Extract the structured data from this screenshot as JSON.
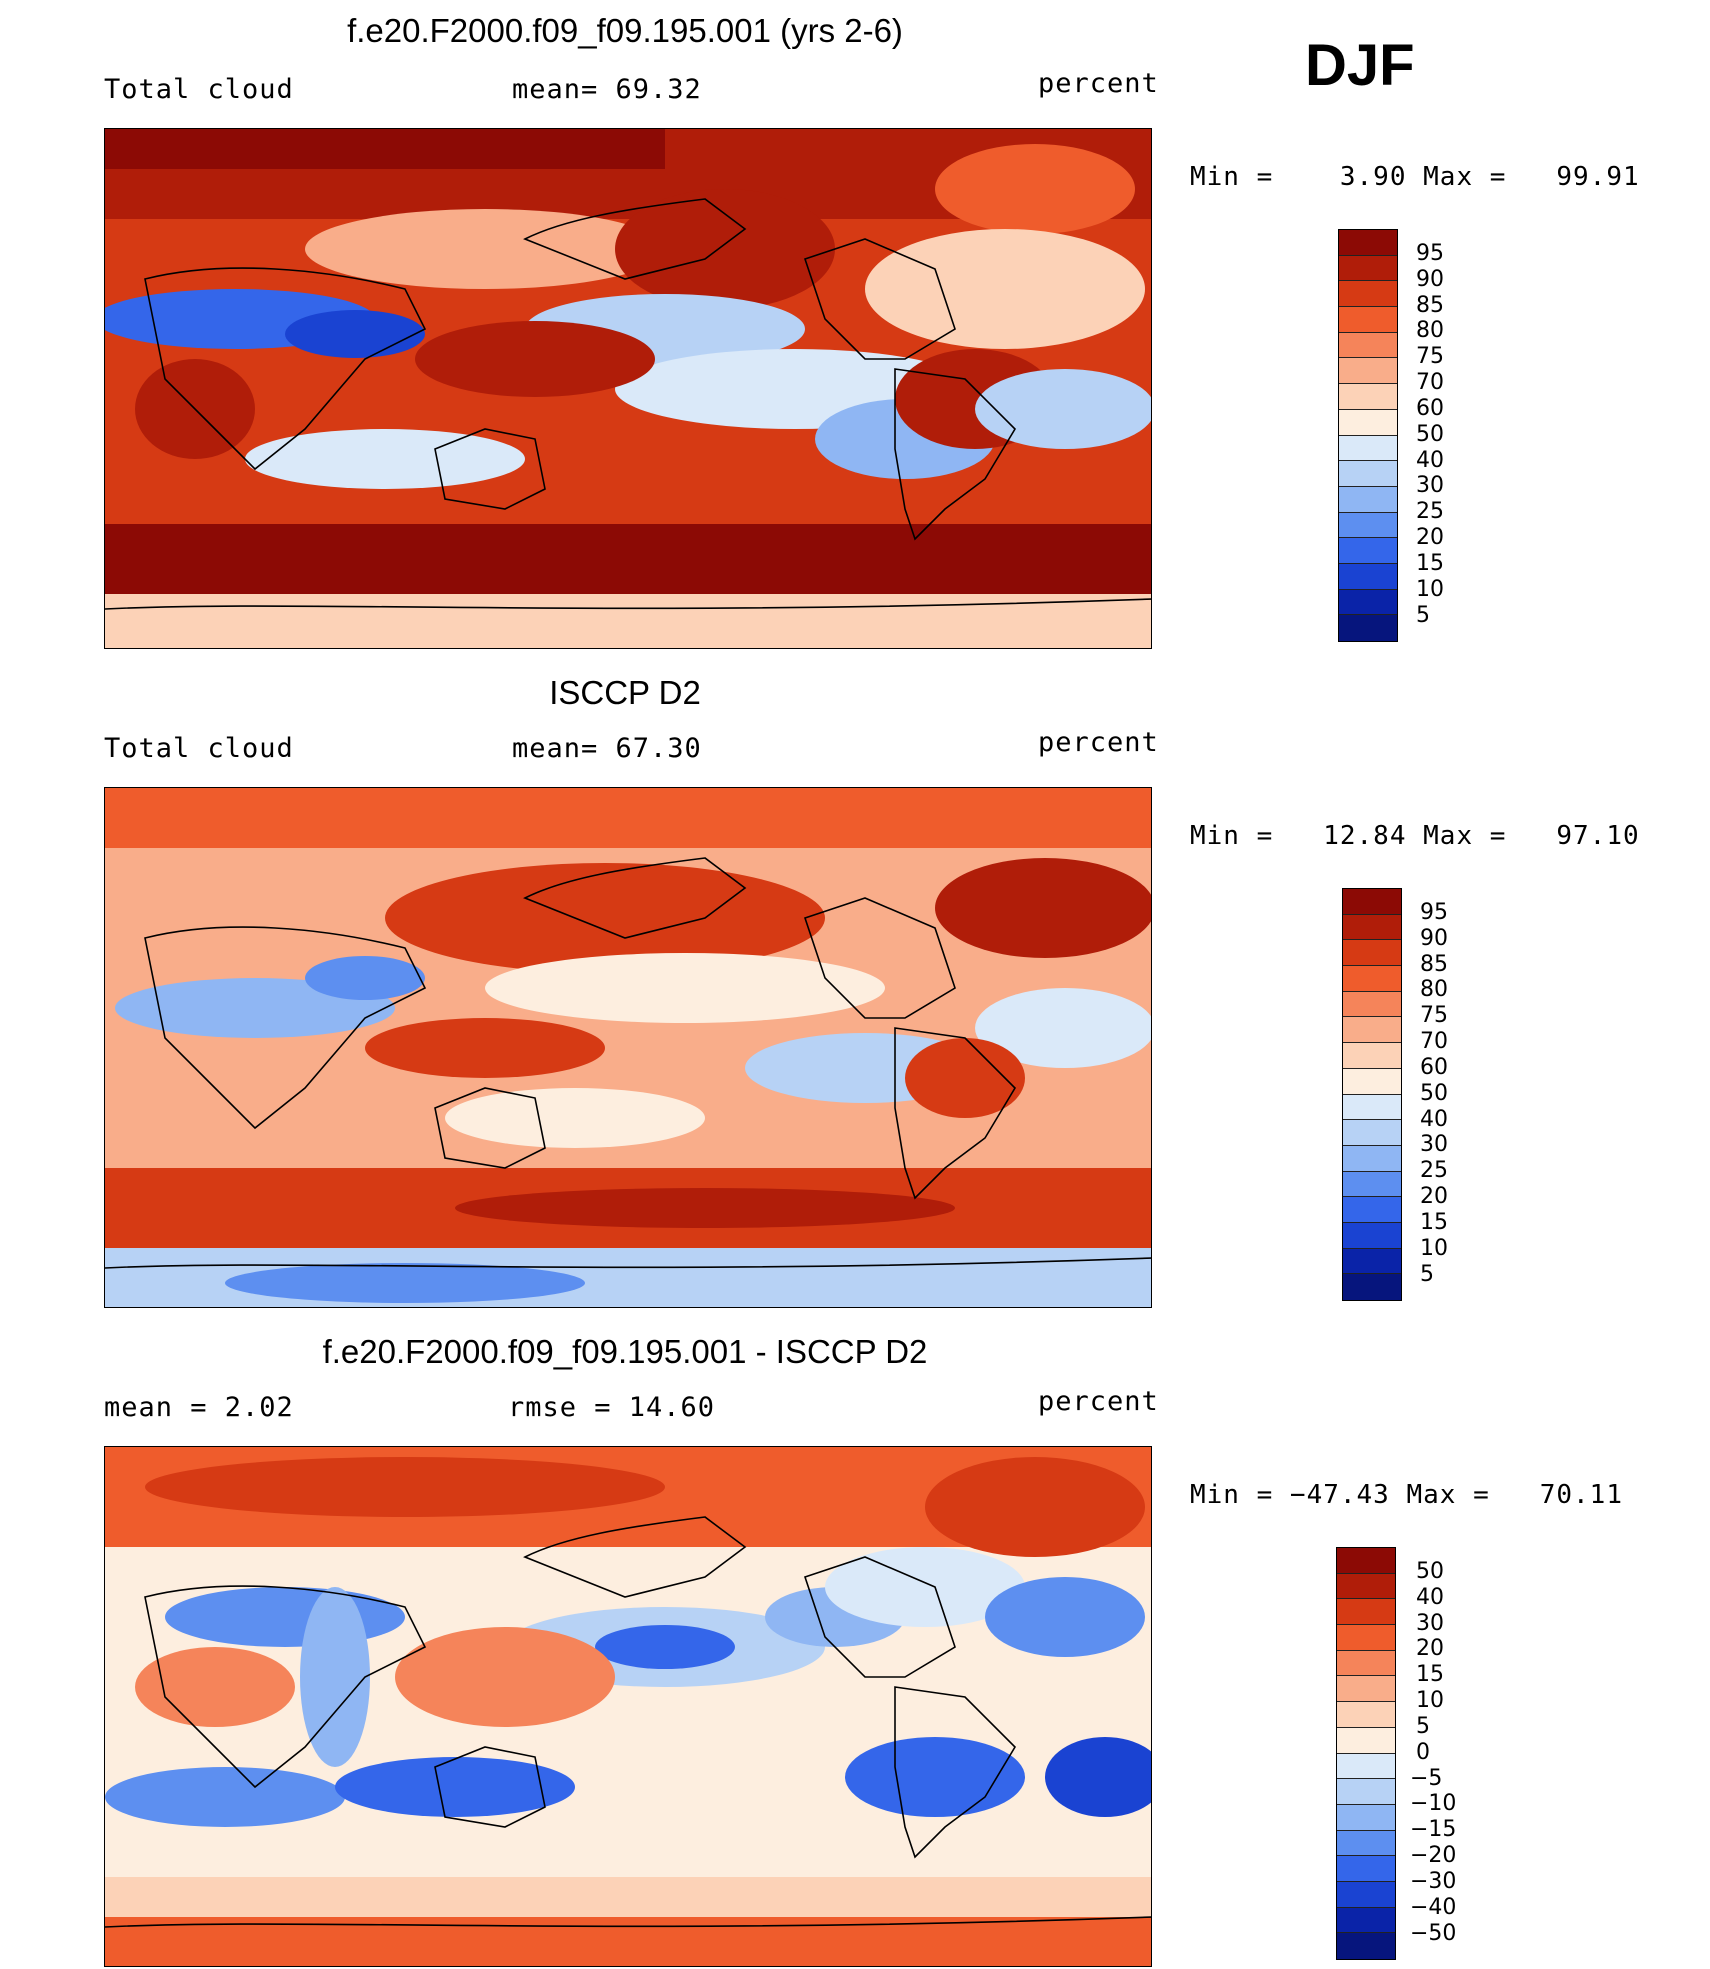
{
  "season": "DJF",
  "panels": [
    {
      "title": "f.e20.F2000.f09_f09.195.001 (yrs 2-6)",
      "left": "Total cloud",
      "center": "mean=   69.32",
      "right": "percent",
      "minmax": "Min =    3.90 Max =   99.91",
      "colorbar_labels": [
        "95",
        "90",
        "85",
        "80",
        "75",
        "70",
        "60",
        "50",
        "40",
        "30",
        "25",
        "20",
        "15",
        "10",
        "5"
      ],
      "colorbar_colors": [
        "#8c0a05",
        "#b01d09",
        "#d63a14",
        "#ef5c2c",
        "#f5845a",
        "#f9ad8a",
        "#fcd2b7",
        "#fdeedf",
        "#dae9f9",
        "#b7d2f5",
        "#8fb6f3",
        "#5d8ff0",
        "#3466ea",
        "#1a43d2",
        "#0a23a8",
        "#06157d"
      ],
      "mean": 69.32,
      "min": 3.9,
      "max": 99.91,
      "units": "percent"
    },
    {
      "title": "ISCCP D2",
      "left": "Total cloud",
      "center": "mean=   67.30",
      "right": "percent",
      "minmax": "Min =   12.84 Max =   97.10",
      "colorbar_labels": [
        "95",
        "90",
        "85",
        "80",
        "75",
        "70",
        "60",
        "50",
        "40",
        "30",
        "25",
        "20",
        "15",
        "10",
        "5"
      ],
      "colorbar_colors": [
        "#8c0a05",
        "#b01d09",
        "#d63a14",
        "#ef5c2c",
        "#f5845a",
        "#f9ad8a",
        "#fcd2b7",
        "#fdeedf",
        "#dae9f9",
        "#b7d2f5",
        "#8fb6f3",
        "#5d8ff0",
        "#3466ea",
        "#1a43d2",
        "#0a23a8",
        "#06157d"
      ],
      "mean": 67.3,
      "min": 12.84,
      "max": 97.1,
      "units": "percent"
    },
    {
      "title": "f.e20.F2000.f09_f09.195.001 - ISCCP D2",
      "left": "mean =    2.02",
      "center": "rmse =   14.60",
      "right": "percent",
      "minmax": "Min = −47.43 Max =   70.11",
      "colorbar_labels": [
        "50",
        "40",
        "30",
        "20",
        "15",
        "10",
        "5",
        "0",
        "−5",
        "−10",
        "−15",
        "−20",
        "−30",
        "−40",
        "−50"
      ],
      "colorbar_colors": [
        "#8c0a05",
        "#b01d09",
        "#d63a14",
        "#ef5c2c",
        "#f5845a",
        "#f9ad8a",
        "#fcd2b7",
        "#fdeedf",
        "#dae9f9",
        "#b7d2f5",
        "#8fb6f3",
        "#5d8ff0",
        "#3466ea",
        "#1a43d2",
        "#0a23a8",
        "#06157d"
      ],
      "mean": 2.02,
      "rmse": 14.6,
      "min": -47.43,
      "max": 70.11,
      "units": "percent"
    }
  ]
}
